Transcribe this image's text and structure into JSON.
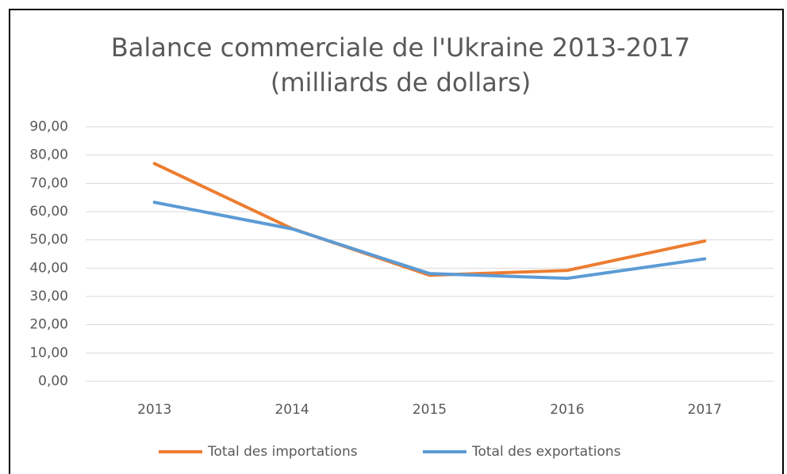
{
  "chart_data": {
    "type": "line",
    "title": "Balance commerciale de l'Ukraine 2013-2017",
    "subtitle": "(milliards de dollars)",
    "categories": [
      "2013",
      "2014",
      "2015",
      "2016",
      "2017"
    ],
    "series": [
      {
        "name": "Total des importations",
        "color": "#ed7d31",
        "values": [
          77.0,
          54.0,
          37.5,
          39.2,
          49.6
        ]
      },
      {
        "name": "Total des exportations",
        "color": "#5b9bd5",
        "values": [
          63.3,
          53.9,
          38.1,
          36.4,
          43.3
        ]
      }
    ],
    "ylim": [
      0,
      90
    ],
    "yticks": [
      {
        "value": 0,
        "label": "0,00"
      },
      {
        "value": 10,
        "label": "10,00"
      },
      {
        "value": 20,
        "label": "20,00"
      },
      {
        "value": 30,
        "label": "30,00"
      },
      {
        "value": 40,
        "label": "40,00"
      },
      {
        "value": 50,
        "label": "50,00"
      },
      {
        "value": 60,
        "label": "60,00"
      },
      {
        "value": 70,
        "label": "70,00"
      },
      {
        "value": 80,
        "label": "80,00"
      },
      {
        "value": 90,
        "label": "90,00"
      }
    ],
    "grid": true,
    "legend": "bottom"
  }
}
